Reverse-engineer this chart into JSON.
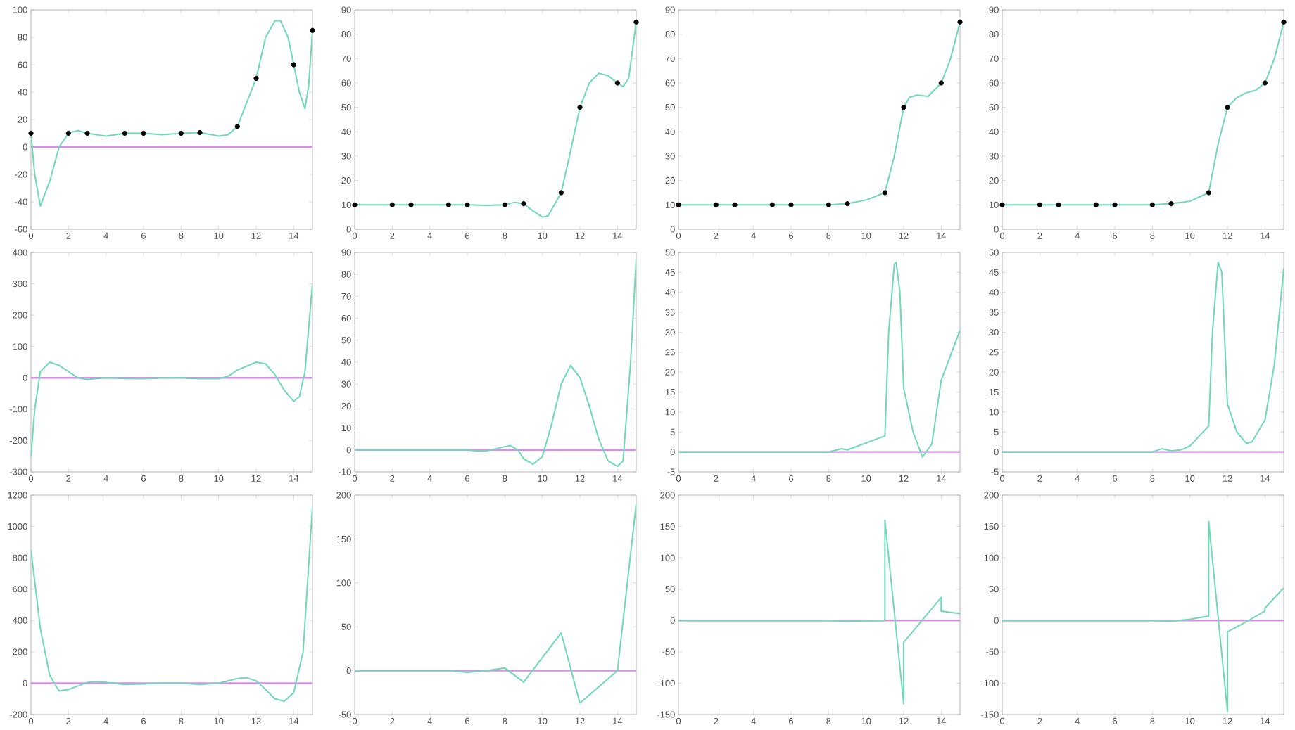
{
  "chart_data": [
    {
      "type": "line",
      "xlim": [
        0,
        15
      ],
      "xticks": [
        0,
        2,
        4,
        6,
        8,
        10,
        12,
        14
      ],
      "ylim": [
        -60,
        100
      ],
      "yticks": [
        -60,
        -40,
        -20,
        0,
        20,
        40,
        60,
        80,
        100
      ],
      "ref_lines": [
        {
          "axis": "y",
          "value": 0,
          "color": "#d98ee8"
        }
      ],
      "series": [
        {
          "color": "#6fd8b8",
          "x": [
            0,
            0.2,
            0.5,
            1,
            1.5,
            2,
            2.5,
            3,
            4,
            5,
            6,
            7,
            8,
            9,
            10,
            10.5,
            11,
            12,
            12.5,
            13,
            13.3,
            13.7,
            14,
            14.3,
            14.6,
            14.8,
            15
          ],
          "values": [
            10,
            -20,
            -43,
            -25,
            0,
            10,
            12,
            10,
            8,
            10,
            10,
            9,
            10,
            10.5,
            8,
            9,
            15,
            50,
            80,
            92,
            92,
            80,
            60,
            40,
            28,
            45,
            85
          ]
        },
        {
          "type": "scatter",
          "marker": "circle",
          "color": "#000000",
          "x": [
            0,
            2,
            3,
            5,
            6,
            8,
            9,
            11,
            12,
            14,
            15
          ],
          "values": [
            10,
            10,
            10,
            10,
            10,
            10,
            10.5,
            15,
            50,
            60,
            85
          ]
        }
      ]
    },
    {
      "type": "line",
      "xlim": [
        0,
        15
      ],
      "xticks": [
        0,
        2,
        4,
        6,
        8,
        10,
        12,
        14
      ],
      "ylim": [
        0,
        90
      ],
      "yticks": [
        0,
        10,
        20,
        30,
        40,
        50,
        60,
        70,
        80,
        90
      ],
      "series": [
        {
          "color": "#6fd8b8",
          "x": [
            0,
            2,
            3,
            5,
            6,
            7,
            8,
            8.5,
            9,
            9.5,
            10,
            10.3,
            11,
            11.5,
            12,
            12.5,
            13,
            13.5,
            14,
            14.3,
            14.6,
            15
          ],
          "values": [
            10,
            10,
            10,
            10,
            10,
            9.8,
            10,
            11,
            10.5,
            7.5,
            5,
            5.5,
            15,
            32,
            50,
            60,
            64,
            63,
            60,
            58.5,
            62,
            85
          ]
        },
        {
          "type": "scatter",
          "marker": "circle",
          "color": "#000000",
          "x": [
            0,
            2,
            3,
            5,
            6,
            8,
            9,
            11,
            12,
            14,
            15
          ],
          "values": [
            10,
            10,
            10,
            10,
            10,
            10,
            10.5,
            15,
            50,
            60,
            85
          ]
        }
      ]
    },
    {
      "type": "line",
      "xlim": [
        0,
        15
      ],
      "xticks": [
        0,
        2,
        4,
        6,
        8,
        10,
        12,
        14
      ],
      "ylim": [
        0,
        90
      ],
      "yticks": [
        0,
        10,
        20,
        30,
        40,
        50,
        60,
        70,
        80,
        90
      ],
      "series": [
        {
          "color": "#6fd8b8",
          "x": [
            0,
            2,
            3,
            5,
            6,
            8,
            9,
            10,
            11,
            11.5,
            12,
            12.3,
            12.7,
            13.3,
            14,
            14.5,
            15
          ],
          "values": [
            10,
            10,
            10,
            10,
            10,
            10,
            10.5,
            12,
            15,
            30,
            50,
            54,
            55,
            54.5,
            60,
            70,
            85
          ]
        },
        {
          "type": "scatter",
          "marker": "circle",
          "color": "#000000",
          "x": [
            0,
            2,
            3,
            5,
            6,
            8,
            9,
            11,
            12,
            14,
            15
          ],
          "values": [
            10,
            10,
            10,
            10,
            10,
            10,
            10.5,
            15,
            50,
            60,
            85
          ]
        }
      ]
    },
    {
      "type": "line",
      "xlim": [
        0,
        15
      ],
      "xticks": [
        0,
        2,
        4,
        6,
        8,
        10,
        12,
        14
      ],
      "ylim": [
        0,
        90
      ],
      "yticks": [
        0,
        10,
        20,
        30,
        40,
        50,
        60,
        70,
        80,
        90
      ],
      "series": [
        {
          "color": "#6fd8b8",
          "x": [
            0,
            2,
            3,
            5,
            6,
            8,
            9,
            10,
            11,
            11.5,
            12,
            12.5,
            13,
            13.5,
            14,
            14.5,
            15
          ],
          "values": [
            10,
            10,
            10,
            10,
            10,
            10,
            10.5,
            11.5,
            15,
            35,
            50,
            54,
            56,
            57,
            60,
            70,
            85
          ]
        },
        {
          "type": "scatter",
          "marker": "circle",
          "color": "#000000",
          "x": [
            0,
            2,
            3,
            5,
            6,
            8,
            9,
            11,
            12,
            14,
            15
          ],
          "values": [
            10,
            10,
            10,
            10,
            10,
            10,
            10.5,
            15,
            50,
            60,
            85
          ]
        }
      ]
    },
    {
      "type": "line",
      "xlim": [
        0,
        15
      ],
      "xticks": [
        0,
        2,
        4,
        6,
        8,
        10,
        12,
        14
      ],
      "ylim": [
        -300,
        400
      ],
      "yticks": [
        -300,
        -200,
        -100,
        0,
        100,
        200,
        300,
        400
      ],
      "ref_lines": [
        {
          "axis": "y",
          "value": 0,
          "color": "#d98ee8"
        }
      ],
      "series": [
        {
          "color": "#6fd8b8",
          "x": [
            0,
            0.2,
            0.5,
            1,
            1.5,
            2,
            2.5,
            3,
            4,
            5,
            6,
            7,
            8,
            9,
            10,
            10.5,
            11,
            12,
            12.5,
            13,
            13.5,
            14,
            14.3,
            14.6,
            15
          ],
          "values": [
            -250,
            -100,
            20,
            50,
            40,
            20,
            0,
            -5,
            0,
            -2,
            -3,
            0,
            0,
            -3,
            -3,
            5,
            25,
            50,
            45,
            10,
            -40,
            -75,
            -60,
            20,
            300
          ]
        }
      ]
    },
    {
      "type": "line",
      "xlim": [
        0,
        15
      ],
      "xticks": [
        0,
        2,
        4,
        6,
        8,
        10,
        12,
        14
      ],
      "ylim": [
        -10,
        90
      ],
      "yticks": [
        -10,
        0,
        10,
        20,
        30,
        40,
        50,
        60,
        70,
        80,
        90
      ],
      "ref_lines": [
        {
          "axis": "y",
          "value": 0,
          "color": "#d98ee8"
        }
      ],
      "series": [
        {
          "color": "#6fd8b8",
          "x": [
            0,
            5,
            6,
            6.5,
            7,
            8,
            8.3,
            8.7,
            9,
            9.5,
            10,
            10.5,
            11,
            11.5,
            12,
            12.5,
            13,
            13.5,
            14,
            14.3,
            14.7,
            15
          ],
          "values": [
            0,
            0,
            0,
            -0.5,
            -0.5,
            1.5,
            2,
            0,
            -4,
            -6.5,
            -3,
            12,
            30,
            38.5,
            33,
            20,
            5,
            -5,
            -7.5,
            -5,
            40,
            87
          ]
        }
      ]
    },
    {
      "type": "line",
      "xlim": [
        0,
        15
      ],
      "xticks": [
        0,
        2,
        4,
        6,
        8,
        10,
        12,
        14
      ],
      "ylim": [
        -5,
        50
      ],
      "yticks": [
        -5,
        0,
        5,
        10,
        15,
        20,
        25,
        30,
        35,
        40,
        45,
        50
      ],
      "ref_lines": [
        {
          "axis": "y",
          "value": 0,
          "color": "#d98ee8"
        }
      ],
      "series": [
        {
          "color": "#6fd8b8",
          "x": [
            0,
            8,
            8.7,
            9,
            11,
            11.2,
            11.5,
            11.6,
            11.8,
            12,
            12.5,
            13,
            13.5,
            14,
            15
          ],
          "values": [
            0,
            0,
            0.8,
            0.5,
            4,
            30,
            47,
            47.5,
            40,
            16,
            5,
            -1.3,
            2,
            18,
            30.5
          ]
        }
      ]
    },
    {
      "type": "line",
      "xlim": [
        0,
        15
      ],
      "xticks": [
        0,
        2,
        4,
        6,
        8,
        10,
        12,
        14
      ],
      "ylim": [
        -5,
        50
      ],
      "yticks": [
        -5,
        0,
        5,
        10,
        15,
        20,
        25,
        30,
        35,
        40,
        45,
        50
      ],
      "ref_lines": [
        {
          "axis": "y",
          "value": 0,
          "color": "#d98ee8"
        }
      ],
      "series": [
        {
          "color": "#6fd8b8",
          "x": [
            0,
            8,
            8.5,
            9,
            9.5,
            10,
            10.5,
            11,
            11.2,
            11.5,
            11.7,
            12,
            12.5,
            13,
            13.3,
            14,
            14.5,
            15
          ],
          "values": [
            0,
            0,
            0.8,
            0.3,
            0.5,
            1.5,
            4,
            6.5,
            30,
            47.5,
            45,
            12,
            5,
            2.2,
            2.5,
            8,
            22,
            46
          ]
        }
      ]
    },
    {
      "type": "line",
      "xlim": [
        0,
        15
      ],
      "xticks": [
        0,
        2,
        4,
        6,
        8,
        10,
        12,
        14
      ],
      "ylim": [
        -200,
        1200
      ],
      "yticks": [
        -200,
        0,
        200,
        400,
        600,
        800,
        1000,
        1200
      ],
      "ref_lines": [
        {
          "axis": "y",
          "value": 0,
          "color": "#d98ee8"
        }
      ],
      "series": [
        {
          "color": "#6fd8b8",
          "x": [
            0,
            0.5,
            1,
            1.5,
            2,
            3,
            3.5,
            4,
            5,
            6,
            7,
            8,
            9,
            10,
            11,
            11.5,
            12,
            12.5,
            13,
            13.5,
            14,
            14.5,
            15
          ],
          "values": [
            850,
            350,
            50,
            -50,
            -40,
            5,
            10,
            5,
            -8,
            -5,
            0,
            0,
            -8,
            0,
            30,
            35,
            15,
            -40,
            -100,
            -115,
            -60,
            200,
            1130
          ]
        }
      ]
    },
    {
      "type": "line",
      "xlim": [
        0,
        15
      ],
      "xticks": [
        0,
        2,
        4,
        6,
        8,
        10,
        12,
        14
      ],
      "ylim": [
        -50,
        200
      ],
      "yticks": [
        -50,
        0,
        50,
        100,
        150,
        200
      ],
      "ref_lines": [
        {
          "axis": "y",
          "value": 0,
          "color": "#d98ee8"
        }
      ],
      "series": [
        {
          "color": "#6fd8b8",
          "x": [
            0,
            5,
            6,
            7,
            8,
            9,
            11,
            12,
            14,
            15
          ],
          "values": [
            0,
            0,
            -2,
            0,
            3,
            -13,
            43,
            -37,
            0,
            190
          ]
        }
      ]
    },
    {
      "type": "line",
      "xlim": [
        0,
        15
      ],
      "xticks": [
        0,
        2,
        4,
        6,
        8,
        10,
        12,
        14
      ],
      "ylim": [
        -150,
        200
      ],
      "yticks": [
        -150,
        -100,
        -50,
        0,
        50,
        100,
        150,
        200
      ],
      "ref_lines": [
        {
          "axis": "y",
          "value": 0,
          "color": "#d98ee8"
        }
      ],
      "series": [
        {
          "color": "#6fd8b8",
          "x": [
            0,
            8,
            9,
            11,
            11,
            12,
            12,
            14,
            14,
            15
          ],
          "values": [
            0,
            0,
            -1,
            0,
            160,
            -133,
            -35,
            37,
            15,
            11
          ]
        }
      ]
    },
    {
      "type": "line",
      "xlim": [
        0,
        15
      ],
      "xticks": [
        0,
        2,
        4,
        6,
        8,
        10,
        12,
        14
      ],
      "ylim": [
        -150,
        200
      ],
      "yticks": [
        -150,
        -100,
        -50,
        0,
        50,
        100,
        150,
        200
      ],
      "ref_lines": [
        {
          "axis": "y",
          "value": 0,
          "color": "#d98ee8"
        }
      ],
      "series": [
        {
          "color": "#6fd8b8",
          "x": [
            0,
            8,
            9,
            10,
            11,
            11,
            12,
            12,
            13,
            14,
            14,
            15
          ],
          "values": [
            0,
            0,
            -1,
            2,
            7,
            158,
            -145,
            -18,
            -2,
            15,
            20,
            52
          ]
        }
      ]
    }
  ]
}
